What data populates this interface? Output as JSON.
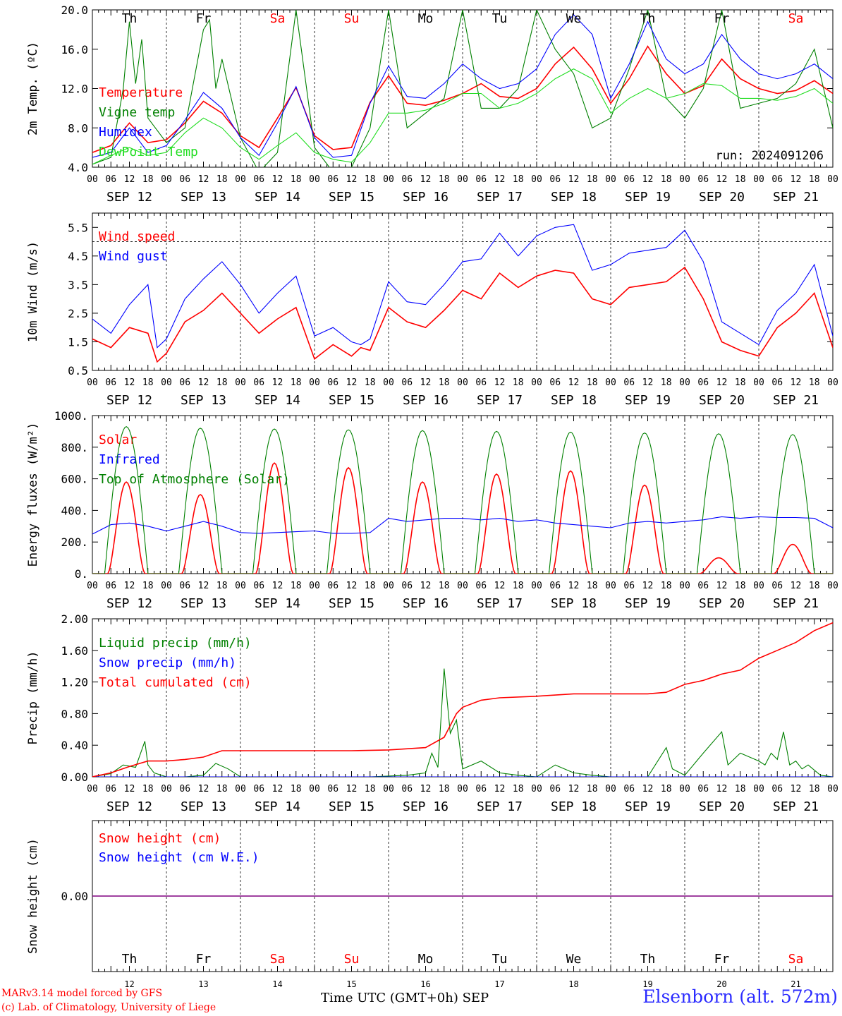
{
  "colors": {
    "red": "#ff0000",
    "green": "#008000",
    "blue": "#0000ff",
    "lime": "#22dd22",
    "purple": "#800080",
    "weekend": "#ff0000"
  },
  "day_names": [
    "Th",
    "Fr",
    "Sa",
    "Su",
    "Mo",
    "Tu",
    "We",
    "Th",
    "Fr",
    "Sa"
  ],
  "weekend_days": [
    "Sa",
    "Su"
  ],
  "date_labels": [
    "SEP 12",
    "SEP 13",
    "SEP 14",
    "SEP 15",
    "SEP 16",
    "SEP 17",
    "SEP 18",
    "SEP 19",
    "SEP 20",
    "SEP 21"
  ],
  "hour_ticks": [
    "00",
    "06",
    "12",
    "18"
  ],
  "bottom_day_numbers": [
    "12",
    "13",
    "14",
    "15",
    "16",
    "17",
    "18",
    "19",
    "20",
    "21"
  ],
  "footer": {
    "credits": [
      "MARv3.14 model forced by GFS",
      "(c) Lab. of Climatology, University of Liege"
    ],
    "xaxis_title": "Time UTC (GMT+0h) SEP",
    "station": "Elsenborn (alt. 572m)"
  },
  "chart_data": [
    {
      "type": "line",
      "ylabel": "2m Temp. (ºC)",
      "ylim": [
        4,
        20
      ],
      "yticks": [
        "4.0",
        "8.0",
        "12.0",
        "16.0",
        "20.0"
      ],
      "annotation": "run: 2024091206",
      "x_unit": "hours since SEP 12 00 UTC",
      "series": [
        {
          "name": "Temperature",
          "color": "red",
          "x": [
            0,
            6,
            12,
            18,
            24,
            30,
            36,
            42,
            48,
            54,
            60,
            66,
            72,
            78,
            84,
            90,
            96,
            102,
            108,
            114,
            120,
            126,
            132,
            138,
            144,
            150,
            156,
            162,
            168,
            174,
            180,
            186,
            192,
            198,
            204,
            210,
            216,
            222,
            228,
            234,
            240
          ],
          "y": [
            5.5,
            6.2,
            8.5,
            6.5,
            6.8,
            8.5,
            10.7,
            9.5,
            7.2,
            6.0,
            9.0,
            12.1,
            7.2,
            5.8,
            6.0,
            10.6,
            13.3,
            10.5,
            10.3,
            10.8,
            11.5,
            12.5,
            11.2,
            11.0,
            12.0,
            14.5,
            16.2,
            14.0,
            10.5,
            13.0,
            16.3,
            13.5,
            11.5,
            12.3,
            15.0,
            13.0,
            12.0,
            11.5,
            11.8,
            12.8,
            11.5
          ]
        },
        {
          "name": "Vigne temp",
          "color": "green",
          "x": [
            0,
            6,
            10,
            12,
            14,
            16,
            18,
            24,
            30,
            36,
            38,
            40,
            42,
            48,
            54,
            60,
            66,
            72,
            78,
            84,
            90,
            96,
            102,
            108,
            114,
            120,
            126,
            132,
            138,
            144,
            150,
            156,
            162,
            168,
            174,
            180,
            186,
            192,
            198,
            204,
            210,
            216,
            222,
            228,
            234,
            240
          ],
          "y": [
            4.3,
            5.0,
            12.0,
            18.8,
            12.5,
            17.0,
            9.0,
            6.5,
            8.0,
            18.0,
            19.0,
            12.0,
            15.0,
            7.0,
            3.5,
            5.5,
            20.0,
            6.0,
            3.5,
            4.0,
            8.0,
            20.0,
            8.0,
            9.5,
            11.0,
            20.0,
            10.0,
            10.0,
            12.0,
            20.0,
            16.0,
            13.5,
            8.0,
            9.0,
            14.0,
            20.0,
            11.0,
            9.0,
            12.0,
            20.0,
            10.0,
            10.5,
            11.0,
            12.5,
            16.0,
            8.0
          ]
        },
        {
          "name": "Humidex",
          "color": "blue",
          "x": [
            0,
            6,
            12,
            18,
            24,
            30,
            36,
            42,
            48,
            54,
            60,
            66,
            72,
            78,
            84,
            90,
            96,
            102,
            108,
            114,
            120,
            126,
            132,
            138,
            144,
            150,
            156,
            162,
            168,
            174,
            180,
            186,
            192,
            198,
            204,
            210,
            216,
            222,
            228,
            234,
            240
          ],
          "y": [
            5.0,
            5.5,
            8.0,
            5.5,
            6.2,
            8.8,
            11.6,
            10.0,
            7.0,
            5.2,
            8.5,
            12.2,
            7.0,
            5.0,
            5.2,
            10.5,
            14.3,
            11.2,
            11.0,
            12.5,
            14.5,
            13.0,
            12.0,
            12.5,
            14.0,
            17.5,
            19.5,
            17.5,
            11.0,
            14.5,
            18.8,
            15.0,
            13.5,
            14.5,
            17.5,
            15.0,
            13.5,
            13.0,
            13.5,
            14.5,
            13.0
          ]
        },
        {
          "name": "DewPoint Temp",
          "color": "lime",
          "x": [
            0,
            6,
            12,
            18,
            24,
            30,
            36,
            42,
            48,
            54,
            60,
            66,
            72,
            78,
            84,
            90,
            96,
            102,
            108,
            114,
            120,
            126,
            132,
            138,
            144,
            150,
            156,
            162,
            168,
            174,
            180,
            186,
            192,
            198,
            204,
            210,
            216,
            222,
            228,
            234,
            240
          ],
          "y": [
            4.3,
            5.2,
            6.0,
            5.2,
            5.5,
            7.5,
            9.0,
            8.0,
            6.0,
            4.8,
            6.2,
            7.5,
            5.5,
            4.8,
            4.5,
            6.5,
            9.5,
            9.5,
            9.8,
            10.5,
            11.5,
            11.5,
            10.0,
            10.5,
            11.5,
            13.0,
            14.0,
            13.0,
            9.5,
            11.0,
            12.0,
            11.0,
            11.5,
            12.5,
            12.3,
            11.0,
            11.0,
            10.8,
            11.2,
            12.0,
            10.5
          ]
        }
      ]
    },
    {
      "type": "line",
      "ylabel": "10m Wind (m/s)",
      "ylim": [
        0.5,
        6.0
      ],
      "yticks": [
        "0.5",
        "1.5",
        "2.5",
        "3.5",
        "4.5",
        "5.5"
      ],
      "reference_line": 5.0,
      "x_unit": "hours since SEP 12 00 UTC",
      "series": [
        {
          "name": "Wind speed",
          "color": "red",
          "x": [
            0,
            6,
            12,
            18,
            21,
            24,
            30,
            36,
            42,
            48,
            54,
            60,
            66,
            72,
            78,
            84,
            87,
            90,
            96,
            102,
            108,
            114,
            120,
            126,
            132,
            138,
            144,
            150,
            156,
            162,
            168,
            174,
            180,
            186,
            192,
            198,
            204,
            210,
            216,
            222,
            228,
            234,
            240
          ],
          "y": [
            1.6,
            1.3,
            2.0,
            1.8,
            0.8,
            1.1,
            2.2,
            2.6,
            3.2,
            2.5,
            1.8,
            2.3,
            2.7,
            0.9,
            1.4,
            1.0,
            1.3,
            1.2,
            2.7,
            2.2,
            2.0,
            2.6,
            3.3,
            3.0,
            3.9,
            3.4,
            3.8,
            4.0,
            3.9,
            3.0,
            2.8,
            3.4,
            3.5,
            3.6,
            4.1,
            3.0,
            1.5,
            1.2,
            1.0,
            2.0,
            2.5,
            3.2,
            1.3
          ]
        },
        {
          "name": "Wind gust",
          "color": "blue",
          "x": [
            0,
            6,
            12,
            18,
            21,
            24,
            30,
            36,
            42,
            48,
            54,
            60,
            66,
            72,
            78,
            84,
            87,
            90,
            96,
            102,
            108,
            114,
            120,
            126,
            132,
            138,
            144,
            150,
            156,
            162,
            168,
            174,
            180,
            186,
            192,
            198,
            204,
            210,
            216,
            222,
            228,
            234,
            240
          ],
          "y": [
            2.3,
            1.8,
            2.8,
            3.5,
            1.3,
            1.6,
            3.0,
            3.7,
            4.3,
            3.5,
            2.5,
            3.2,
            3.8,
            1.7,
            2.0,
            1.5,
            1.4,
            1.6,
            3.6,
            2.9,
            2.8,
            3.5,
            4.3,
            4.4,
            5.3,
            4.5,
            5.2,
            5.5,
            5.6,
            4.0,
            4.2,
            4.6,
            4.7,
            4.8,
            5.4,
            4.3,
            2.2,
            1.8,
            1.4,
            2.6,
            3.2,
            4.2,
            1.7
          ]
        }
      ]
    },
    {
      "type": "line",
      "ylabel": "Energy fluxes (W/m²)",
      "ylim": [
        0,
        1000
      ],
      "yticks": [
        "0.",
        "200.",
        "400.",
        "600.",
        "800.",
        "1000."
      ],
      "x_unit": "hours since SEP 12 00 UTC",
      "series": [
        {
          "name": "Solar",
          "color": "red",
          "daily_peak_values": [
            580,
            500,
            700,
            670,
            580,
            630,
            650,
            560,
            100,
            185
          ]
        },
        {
          "name": "Infrared",
          "color": "blue",
          "x": [
            0,
            6,
            12,
            18,
            24,
            30,
            36,
            42,
            48,
            54,
            60,
            66,
            72,
            78,
            84,
            90,
            96,
            102,
            108,
            114,
            120,
            126,
            132,
            138,
            144,
            150,
            156,
            162,
            168,
            174,
            180,
            186,
            192,
            198,
            204,
            210,
            216,
            222,
            228,
            234,
            240
          ],
          "y": [
            250,
            310,
            320,
            300,
            270,
            300,
            330,
            300,
            260,
            255,
            260,
            265,
            270,
            255,
            255,
            260,
            350,
            330,
            340,
            350,
            350,
            340,
            350,
            330,
            340,
            320,
            310,
            300,
            290,
            320,
            330,
            320,
            330,
            340,
            360,
            350,
            360,
            355,
            355,
            350,
            290
          ]
        },
        {
          "name": "Top of Atmosphere (Solar)",
          "color": "green",
          "daily_peak_values": [
            930,
            920,
            915,
            910,
            905,
            900,
            895,
            890,
            885,
            880
          ]
        }
      ]
    },
    {
      "type": "line",
      "ylabel": "Precip (mm/h)",
      "ylim": [
        0,
        2.0
      ],
      "yticks": [
        "0.00",
        "0.40",
        "0.80",
        "1.20",
        "1.60",
        "2.00"
      ],
      "x_unit": "hours since SEP 12 00 UTC",
      "series": [
        {
          "name": "Liquid precip (mm/h)",
          "color": "green",
          "x": [
            0,
            6,
            10,
            14,
            17,
            18,
            20,
            24,
            30,
            36,
            40,
            44,
            48,
            60,
            90,
            96,
            102,
            108,
            110,
            112,
            114,
            116,
            118,
            120,
            126,
            132,
            138,
            144,
            150,
            156,
            162,
            168,
            174,
            180,
            186,
            188,
            192,
            198,
            204,
            206,
            210,
            216,
            218,
            220,
            222,
            224,
            226,
            228,
            230,
            232,
            236,
            240
          ],
          "y": [
            0,
            0.04,
            0.15,
            0.12,
            0.45,
            0.15,
            0.05,
            0,
            0,
            0.02,
            0.17,
            0.1,
            0,
            0,
            0,
            0.01,
            0.02,
            0.05,
            0.3,
            0.12,
            1.37,
            0.55,
            0.72,
            0.1,
            0.2,
            0.05,
            0.02,
            0,
            0.15,
            0.05,
            0.02,
            0,
            0,
            0,
            0.37,
            0.1,
            0.02,
            0.3,
            0.57,
            0.15,
            0.3,
            0.2,
            0.15,
            0.3,
            0.22,
            0.57,
            0.15,
            0.2,
            0.1,
            0.15,
            0.02,
            0
          ]
        },
        {
          "name": "Snow precip (mm/h)",
          "color": "blue",
          "x": [
            0,
            240
          ],
          "y": [
            0,
            0
          ]
        },
        {
          "name": "Total cumulated (cm)",
          "color": "red",
          "x": [
            0,
            6,
            12,
            18,
            24,
            30,
            36,
            42,
            48,
            60,
            72,
            84,
            96,
            108,
            114,
            118,
            120,
            126,
            132,
            144,
            156,
            168,
            180,
            186,
            192,
            198,
            204,
            210,
            216,
            222,
            228,
            234,
            240
          ],
          "y": [
            0,
            0.05,
            0.13,
            0.2,
            0.2,
            0.22,
            0.25,
            0.33,
            0.33,
            0.33,
            0.33,
            0.33,
            0.34,
            0.37,
            0.5,
            0.8,
            0.88,
            0.97,
            1.0,
            1.02,
            1.05,
            1.05,
            1.05,
            1.07,
            1.17,
            1.22,
            1.3,
            1.35,
            1.5,
            1.6,
            1.7,
            1.85,
            1.95
          ]
        }
      ]
    },
    {
      "type": "line",
      "ylabel": "Snow height (cm)",
      "ylim": [
        -1,
        1
      ],
      "yticks": [
        "0.00"
      ],
      "x_unit": "hours since SEP 12 00 UTC",
      "series": [
        {
          "name": "Snow height (cm)",
          "color": "red",
          "x": [
            0,
            240
          ],
          "y": [
            0,
            0
          ]
        },
        {
          "name": "Snow height (cm W.E.)",
          "color": "blue",
          "x": [
            0,
            240
          ],
          "y": [
            0,
            0
          ]
        }
      ]
    }
  ]
}
